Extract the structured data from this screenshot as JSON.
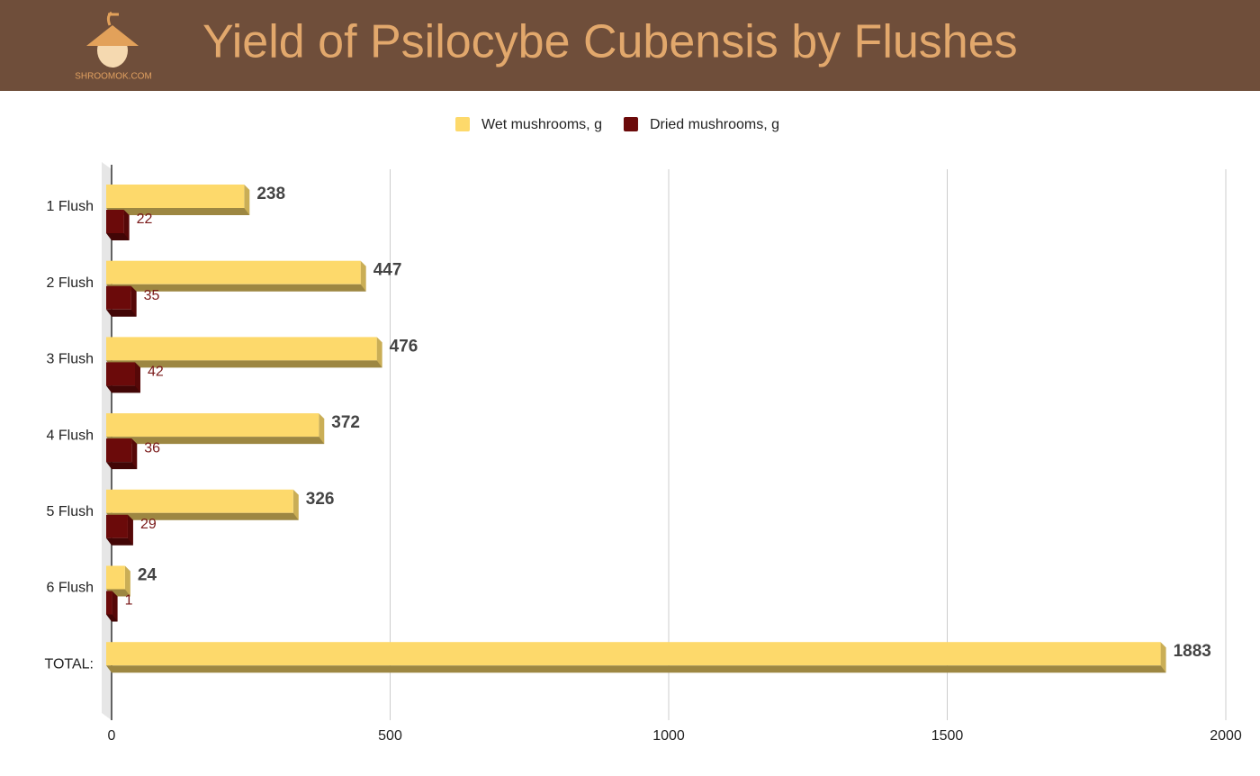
{
  "header": {
    "logo_text": "SHROOMOK.COM"
  },
  "chart_data": {
    "type": "bar",
    "orientation": "horizontal",
    "title": "Yield of Psilocybe Cubensis by Flushes",
    "categories": [
      "1 Flush",
      "2 Flush",
      "3 Flush",
      "4 Flush",
      "5 Flush",
      "6 Flush",
      "TOTAL:"
    ],
    "series": [
      {
        "name": "Wet mushrooms, g",
        "color": "#fdd96b",
        "values": [
          238,
          447,
          476,
          372,
          326,
          24,
          1883
        ]
      },
      {
        "name": "Dried mushrooms, g",
        "color": "#6b0a0a",
        "values": [
          22,
          35,
          42,
          36,
          29,
          1,
          null
        ]
      }
    ],
    "xlim": [
      0,
      2000
    ],
    "xticks": [
      0,
      500,
      1000,
      1500,
      2000
    ],
    "grid": true,
    "legend": "top"
  }
}
